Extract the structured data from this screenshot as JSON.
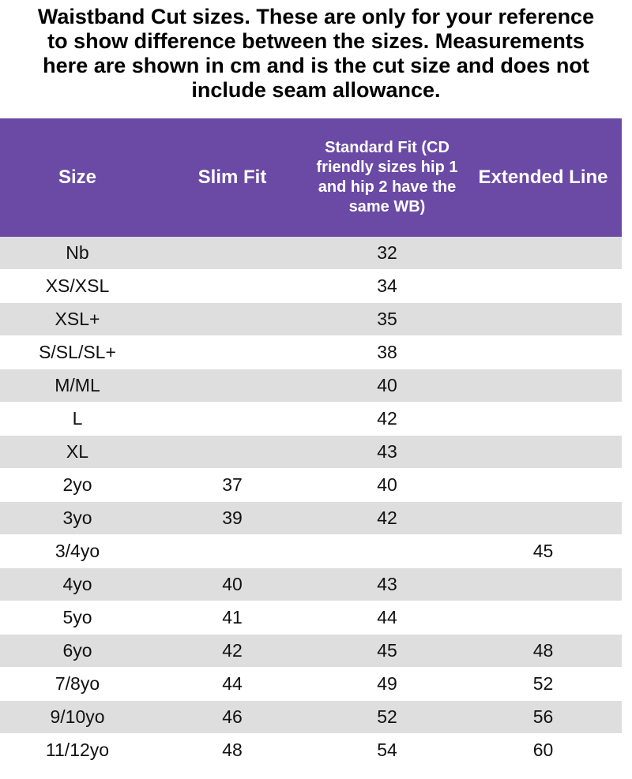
{
  "title": {
    "lines": [
      "Waistband Cut sizes. These are only for your reference",
      "to show difference between the sizes. Measurements",
      "here are shown in cm and is the cut size and does not",
      "include seam allowance."
    ]
  },
  "colors": {
    "header_background": "#6a4aa5",
    "header_text": "#ffffff",
    "row_stripe": "#dedede"
  },
  "table": {
    "headers": [
      "Size",
      "Slim Fit",
      "Standard Fit (CD friendly sizes hip 1 and hip 2 have the same WB)",
      "Extended Line"
    ],
    "rows": [
      [
        "Nb",
        "",
        "32",
        ""
      ],
      [
        "XS/XSL",
        "",
        "34",
        ""
      ],
      [
        "XSL+",
        "",
        "35",
        ""
      ],
      [
        "S/SL/SL+",
        "",
        "38",
        ""
      ],
      [
        "M/ML",
        "",
        "40",
        ""
      ],
      [
        "L",
        "",
        "42",
        ""
      ],
      [
        "XL",
        "",
        "43",
        ""
      ],
      [
        "2yo",
        "37",
        "40",
        ""
      ],
      [
        "3yo",
        "39",
        "42",
        ""
      ],
      [
        "3/4yo",
        "",
        "",
        "45"
      ],
      [
        "4yo",
        "40",
        "43",
        ""
      ],
      [
        "5yo",
        "41",
        "44",
        ""
      ],
      [
        "6yo",
        "42",
        "45",
        "48"
      ],
      [
        "7/8yo",
        "44",
        "49",
        "52"
      ],
      [
        "9/10yo",
        "46",
        "52",
        "56"
      ],
      [
        "11/12yo",
        "48",
        "54",
        "60"
      ]
    ]
  }
}
